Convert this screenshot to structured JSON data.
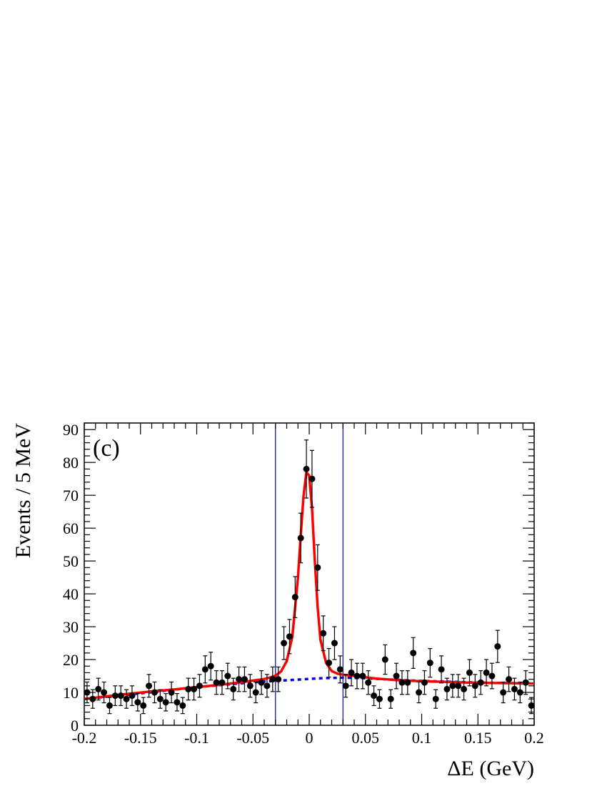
{
  "chart_data": {
    "type": "scatter",
    "title": "",
    "panel_label": "(c)",
    "xlabel": "ΔE  (GeV)",
    "ylabel": "Events / 5 MeV",
    "xlim": [
      -0.2,
      0.2
    ],
    "ylim": [
      0,
      92
    ],
    "grid": false,
    "x_ticks": [
      -0.2,
      -0.15,
      -0.1,
      -0.05,
      0,
      0.05,
      0.1,
      0.15,
      0.2
    ],
    "x_tick_labels": [
      "-0.2",
      "-0.15",
      "-0.1",
      "-0.05",
      "0",
      "0.05",
      "0.1",
      "0.15",
      "0.2"
    ],
    "y_ticks": [
      0,
      10,
      20,
      30,
      40,
      50,
      60,
      70,
      80,
      90
    ],
    "y_tick_labels": [
      "0",
      "10",
      "20",
      "30",
      "40",
      "50",
      "60",
      "70",
      "80",
      "90"
    ],
    "signal_window": [
      -0.03,
      0.03
    ],
    "series": [
      {
        "name": "",
        "kind": "data_points_with_errors",
        "color": "#000000",
        "x": [
          -0.1975,
          -0.1925,
          -0.1875,
          -0.1825,
          -0.1775,
          -0.1725,
          -0.1675,
          -0.1625,
          -0.1575,
          -0.1525,
          -0.1475,
          -0.1425,
          -0.1375,
          -0.1325,
          -0.1275,
          -0.1225,
          -0.1175,
          -0.1125,
          -0.1075,
          -0.1025,
          -0.0975,
          -0.0925,
          -0.0875,
          -0.0825,
          -0.0775,
          -0.0725,
          -0.0675,
          -0.0625,
          -0.0575,
          -0.0525,
          -0.0475,
          -0.0425,
          -0.0375,
          -0.0325,
          -0.0275,
          -0.0225,
          -0.0175,
          -0.0125,
          -0.0075,
          -0.0025,
          0.0025,
          0.0075,
          0.0125,
          0.0175,
          0.0225,
          0.0275,
          0.0325,
          0.0375,
          0.0425,
          0.0475,
          0.0525,
          0.0575,
          0.0625,
          0.0675,
          0.0725,
          0.0775,
          0.0825,
          0.0875,
          0.0925,
          0.0975,
          0.1025,
          0.1075,
          0.1125,
          0.1175,
          0.1225,
          0.1275,
          0.1325,
          0.1375,
          0.1425,
          0.1475,
          0.1525,
          0.1575,
          0.1625,
          0.1675,
          0.1725,
          0.1775,
          0.1825,
          0.1875,
          0.1925,
          0.1975
        ],
        "y": [
          10,
          8,
          11,
          10,
          6,
          9,
          9,
          8,
          9,
          7,
          6,
          12,
          10,
          8,
          7,
          10,
          7,
          6,
          11,
          11,
          12,
          17,
          18,
          13,
          13,
          15,
          11,
          14,
          14,
          12,
          10,
          13,
          12,
          14,
          14,
          25,
          27,
          39,
          57,
          78,
          75,
          48,
          28,
          19,
          25,
          17,
          12,
          16,
          15,
          15,
          13,
          9,
          8,
          20,
          8,
          15,
          13,
          13,
          22,
          10,
          13,
          19,
          8,
          17,
          11,
          12,
          12,
          11,
          16,
          12,
          13,
          16,
          15,
          24,
          10,
          14,
          11,
          10,
          13,
          6
        ]
      },
      {
        "name": "",
        "kind": "fit_total",
        "color": "#ff0000",
        "x": [
          -0.2,
          -0.18,
          -0.16,
          -0.14,
          -0.12,
          -0.1,
          -0.08,
          -0.06,
          -0.05,
          -0.04,
          -0.035,
          -0.03,
          -0.025,
          -0.02,
          -0.015,
          -0.01,
          -0.0075,
          -0.005,
          -0.0025,
          0,
          0.0025,
          0.005,
          0.0075,
          0.01,
          0.015,
          0.02,
          0.025,
          0.03,
          0.04,
          0.05,
          0.06,
          0.08,
          0.1,
          0.12,
          0.14,
          0.16,
          0.18,
          0.2
        ],
        "y": [
          8.0,
          8.8,
          9.6,
          10.3,
          10.9,
          11.6,
          12.3,
          13.1,
          13.6,
          14.1,
          14.5,
          15.1,
          16.4,
          19.5,
          27,
          45,
          58,
          70,
          77,
          76,
          66,
          50,
          36,
          26,
          19,
          16.5,
          15.7,
          15.4,
          15.0,
          14.6,
          14.2,
          13.7,
          13.4,
          13.2,
          13.0,
          12.9,
          12.8,
          12.7
        ]
      },
      {
        "name": "",
        "kind": "fit_background",
        "color": "#0000ee",
        "x": [
          -0.2,
          -0.15,
          -0.1,
          -0.05,
          -0.03,
          -0.01,
          0,
          0.01,
          0.02,
          0.03,
          0.05,
          0.08,
          0.1,
          0.15,
          0.2
        ],
        "y": [
          8.0,
          9.7,
          11.6,
          13.1,
          13.5,
          13.9,
          14.1,
          14.3,
          14.4,
          14.5,
          14.3,
          13.8,
          13.5,
          13.0,
          12.7
        ]
      }
    ],
    "error_half_sizes_note_removed": true
  }
}
